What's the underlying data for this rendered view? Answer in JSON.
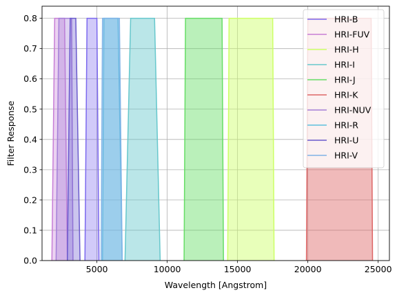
{
  "chart_data": {
    "type": "area",
    "xlabel": "Wavelength [Angstrom]",
    "ylabel": "Filter Response",
    "xlim": [
      1100,
      25800
    ],
    "ylim": [
      0,
      0.84
    ],
    "xticks": [
      5000,
      10000,
      15000,
      20000,
      25000
    ],
    "xtick_labels": [
      "5000",
      "10000",
      "15000",
      "20000",
      "25000"
    ],
    "yticks": [
      0.0,
      0.1,
      0.2,
      0.3,
      0.4,
      0.5,
      0.6,
      0.7,
      0.8
    ],
    "ytick_labels": [
      "0.0",
      "0.1",
      "0.2",
      "0.3",
      "0.4",
      "0.5",
      "0.6",
      "0.7",
      "0.8"
    ],
    "grid": true,
    "legend_position": "top-right",
    "series": [
      {
        "name": "HRI-B",
        "color": "#7b68ee",
        "fill_opacity": 0.35,
        "x": [
          4150,
          4300,
          5000,
          5150
        ],
        "y": [
          0,
          0.8,
          0.8,
          0
        ]
      },
      {
        "name": "HRI-FUV",
        "color": "#c77dd6",
        "fill_opacity": 0.35,
        "x": [
          1800,
          2000,
          2700,
          2900
        ],
        "y": [
          0,
          0.8,
          0.8,
          0
        ]
      },
      {
        "name": "HRI-H",
        "color": "#ccff66",
        "fill_opacity": 0.45,
        "x": [
          14300,
          14400,
          17500,
          17600
        ],
        "y": [
          0,
          0.8,
          0.8,
          0
        ]
      },
      {
        "name": "HRI-I",
        "color": "#66c7cc",
        "fill_opacity": 0.45,
        "x": [
          7000,
          7400,
          9100,
          9500
        ],
        "y": [
          0,
          0.8,
          0.8,
          0
        ]
      },
      {
        "name": "HRI-J",
        "color": "#66dd66",
        "fill_opacity": 0.45,
        "x": [
          11200,
          11300,
          13900,
          14000
        ],
        "y": [
          0,
          0.8,
          0.8,
          0
        ]
      },
      {
        "name": "HRI-K",
        "color": "#dd6666",
        "fill_opacity": 0.45,
        "x": [
          19900,
          20000,
          24500,
          24600
        ],
        "y": [
          0,
          0.8,
          0.8,
          0
        ]
      },
      {
        "name": "HRI-NUV",
        "color": "#a47fd8",
        "fill_opacity": 0.35,
        "x": [
          2100,
          2300,
          3200,
          3300
        ],
        "y": [
          0,
          0.8,
          0.8,
          0
        ]
      },
      {
        "name": "HRI-R",
        "color": "#5bc0de",
        "fill_opacity": 0.45,
        "x": [
          5400,
          5500,
          6500,
          6800
        ],
        "y": [
          0,
          0.8,
          0.8,
          0
        ]
      },
      {
        "name": "HRI-U",
        "color": "#6a5acd",
        "fill_opacity": 0.35,
        "x": [
          2900,
          3100,
          3500,
          3800
        ],
        "y": [
          0,
          0.8,
          0.8,
          0
        ]
      },
      {
        "name": "HRI-V",
        "color": "#7fb3e6",
        "fill_opacity": 0.45,
        "x": [
          5300,
          5400,
          6600,
          6800
        ],
        "y": [
          0,
          0.8,
          0.8,
          0
        ]
      }
    ]
  }
}
